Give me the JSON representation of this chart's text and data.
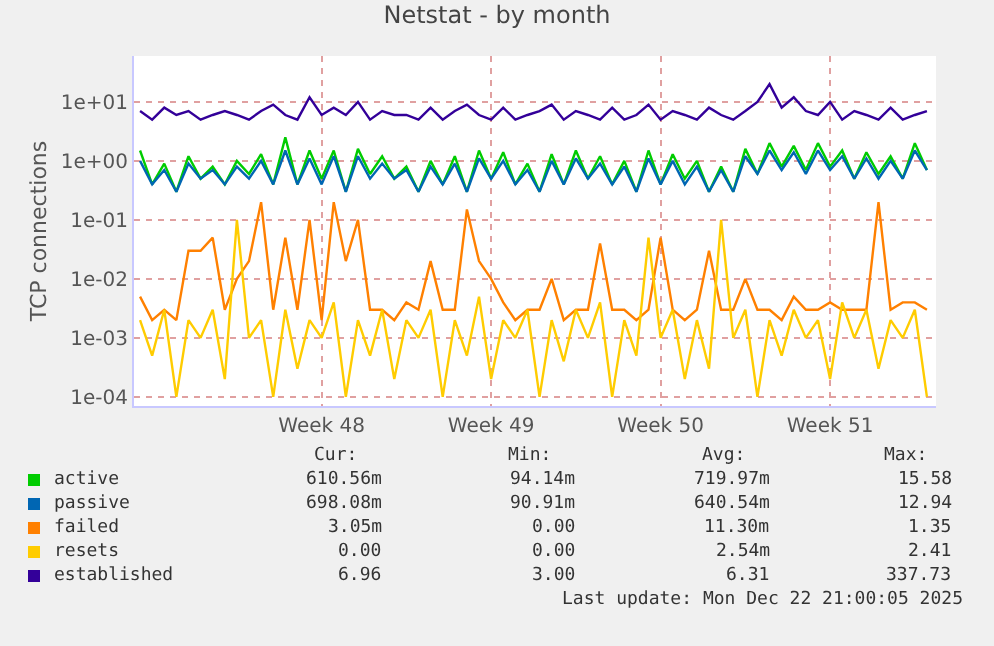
{
  "chart_data": {
    "type": "line",
    "title": "Netstat - by month",
    "ylabel": "TCP connections",
    "log": "y",
    "grid": true,
    "legend": "bottom",
    "ylim": [
      7e-05,
      60
    ],
    "yticks": [
      {
        "value": 0.0001,
        "label": "1e-04"
      },
      {
        "value": 0.001,
        "label": "1e-03"
      },
      {
        "value": 0.01,
        "label": "1e-02"
      },
      {
        "value": 0.1,
        "label": "1e-01"
      },
      {
        "value": 1,
        "label": "1e+00"
      },
      {
        "value": 10,
        "label": "1e+01"
      }
    ],
    "xlim": [
      "2025-11-19T18:00",
      "2025-12-22T21:00"
    ],
    "xticks": [
      {
        "value": "2025-11-27T12:00",
        "label": "Week 48"
      },
      {
        "value": "2025-12-04T12:00",
        "label": "Week 49"
      },
      {
        "value": "2025-12-11T12:00",
        "label": "Week 50"
      },
      {
        "value": "2025-12-18T12:00",
        "label": "Week 51"
      }
    ],
    "x": [
      "2025-11-20T00:00",
      "2025-11-20T12:00",
      "2025-11-21T00:00",
      "2025-11-21T12:00",
      "2025-11-22T00:00",
      "2025-11-22T12:00",
      "2025-11-23T00:00",
      "2025-11-23T12:00",
      "2025-11-24T00:00",
      "2025-11-24T12:00",
      "2025-11-25T00:00",
      "2025-11-25T12:00",
      "2025-11-26T00:00",
      "2025-11-26T12:00",
      "2025-11-27T00:00",
      "2025-11-27T12:00",
      "2025-11-28T00:00",
      "2025-11-28T12:00",
      "2025-11-29T00:00",
      "2025-11-29T12:00",
      "2025-11-30T00:00",
      "2025-11-30T12:00",
      "2025-12-01T00:00",
      "2025-12-01T12:00",
      "2025-12-02T00:00",
      "2025-12-02T12:00",
      "2025-12-03T00:00",
      "2025-12-03T12:00",
      "2025-12-04T00:00",
      "2025-12-04T12:00",
      "2025-12-05T00:00",
      "2025-12-05T12:00",
      "2025-12-06T00:00",
      "2025-12-06T12:00",
      "2025-12-07T00:00",
      "2025-12-07T12:00",
      "2025-12-08T00:00",
      "2025-12-08T12:00",
      "2025-12-09T00:00",
      "2025-12-09T12:00",
      "2025-12-10T00:00",
      "2025-12-10T12:00",
      "2025-12-11T00:00",
      "2025-12-11T12:00",
      "2025-12-12T00:00",
      "2025-12-12T12:00",
      "2025-12-13T00:00",
      "2025-12-13T12:00",
      "2025-12-14T00:00",
      "2025-12-14T12:00",
      "2025-12-15T00:00",
      "2025-12-15T12:00",
      "2025-12-16T00:00",
      "2025-12-16T12:00",
      "2025-12-17T00:00",
      "2025-12-17T12:00",
      "2025-12-18T00:00",
      "2025-12-18T12:00",
      "2025-12-19T00:00",
      "2025-12-19T12:00",
      "2025-12-20T00:00",
      "2025-12-20T12:00",
      "2025-12-21T00:00",
      "2025-12-21T12:00",
      "2025-12-22T00:00",
      "2025-12-22T12:00"
    ],
    "series": [
      {
        "name": "active",
        "color": "#00cc00",
        "values": [
          1.5,
          0.4,
          0.9,
          0.3,
          1.2,
          0.5,
          0.8,
          0.4,
          1,
          0.6,
          1.3,
          0.4,
          2.5,
          0.4,
          1.5,
          0.5,
          1.5,
          0.3,
          1.6,
          0.6,
          1.2,
          0.5,
          0.8,
          0.3,
          1,
          0.4,
          1.2,
          0.3,
          1.5,
          0.5,
          1.4,
          0.4,
          0.9,
          0.3,
          1.3,
          0.4,
          1.5,
          0.5,
          1.2,
          0.4,
          1,
          0.3,
          1.5,
          0.4,
          1.3,
          0.5,
          1,
          0.3,
          0.8,
          0.3,
          1.6,
          0.6,
          2,
          0.8,
          1.8,
          0.7,
          2,
          0.8,
          1.5,
          0.5,
          1.4,
          0.6,
          1.2,
          0.5,
          2,
          0.7
        ]
      },
      {
        "name": "passive",
        "color": "#0066b3",
        "values": [
          1,
          0.4,
          0.7,
          0.3,
          0.9,
          0.5,
          0.7,
          0.4,
          0.8,
          0.5,
          1,
          0.4,
          1.5,
          0.4,
          1.1,
          0.4,
          1.2,
          0.3,
          1.2,
          0.5,
          0.9,
          0.5,
          0.7,
          0.3,
          0.8,
          0.4,
          0.9,
          0.3,
          1.1,
          0.5,
          1,
          0.4,
          0.7,
          0.3,
          1,
          0.4,
          1.1,
          0.5,
          0.9,
          0.4,
          0.8,
          0.3,
          1.1,
          0.4,
          1,
          0.4,
          0.8,
          0.3,
          0.7,
          0.3,
          1.2,
          0.6,
          1.5,
          0.7,
          1.4,
          0.6,
          1.5,
          0.7,
          1.2,
          0.5,
          1.1,
          0.5,
          1,
          0.5,
          1.5,
          0.7
        ]
      },
      {
        "name": "failed",
        "color": "#ff8000",
        "values": [
          0.005,
          0.002,
          0.003,
          0.002,
          0.03,
          0.03,
          0.05,
          0.003,
          0.01,
          0.02,
          0.2,
          0.003,
          0.05,
          0.003,
          0.1,
          0.002,
          0.2,
          0.02,
          0.1,
          0.003,
          0.003,
          0.002,
          0.004,
          0.003,
          0.02,
          0.003,
          0.003,
          0.15,
          0.02,
          0.01,
          0.004,
          0.002,
          0.003,
          0.003,
          0.01,
          0.002,
          0.003,
          0.003,
          0.04,
          0.003,
          0.003,
          0.002,
          0.003,
          0.05,
          0.003,
          0.002,
          0.003,
          0.03,
          0.003,
          0.003,
          0.01,
          0.003,
          0.003,
          0.002,
          0.005,
          0.003,
          0.003,
          0.004,
          0.003,
          0.003,
          0.003,
          0.2,
          0.003,
          0.004,
          0.004,
          0.003
        ]
      },
      {
        "name": "resets",
        "color": "#ffcc00",
        "values": [
          0.002,
          0.0005,
          0.003,
          0.0001,
          0.002,
          0.001,
          0.003,
          0.0002,
          0.1,
          0.001,
          0.002,
          0.0001,
          0.003,
          0.0003,
          0.002,
          0.001,
          0.004,
          0.0001,
          0.002,
          0.0005,
          0.003,
          0.0002,
          0.002,
          0.001,
          0.003,
          0.0001,
          0.002,
          0.0005,
          0.005,
          0.0002,
          0.002,
          0.001,
          0.003,
          0.0001,
          0.002,
          0.0004,
          0.003,
          0.001,
          0.004,
          0.0001,
          0.002,
          0.0005,
          0.05,
          0.001,
          0.003,
          0.0002,
          0.002,
          0.0003,
          0.1,
          0.001,
          0.003,
          0.0001,
          0.002,
          0.0005,
          0.003,
          0.001,
          0.002,
          0.0002,
          0.004,
          0.001,
          0.003,
          0.0003,
          0.002,
          0.001,
          0.003,
          0.0001
        ]
      },
      {
        "name": "established",
        "color": "#330099",
        "values": [
          7,
          5,
          8,
          6,
          7,
          5,
          6,
          7,
          6,
          5,
          7,
          9,
          6,
          5,
          12,
          6,
          8,
          6,
          10,
          5,
          7,
          6,
          6,
          5,
          8,
          5,
          7,
          9,
          6,
          5,
          8,
          5,
          6,
          7,
          9,
          5,
          7,
          6,
          5,
          8,
          5,
          6,
          9,
          5,
          7,
          6,
          5,
          8,
          6,
          5,
          7,
          10,
          20,
          8,
          12,
          7,
          6,
          10,
          5,
          7,
          6,
          5,
          8,
          5,
          6,
          7
        ]
      }
    ],
    "annotations": [
      "Cur:",
      "Min:",
      "Avg:",
      "Max:",
      "610.56m",
      "94.14m",
      "719.97m",
      "15.58",
      "698.08m",
      "90.91m",
      "640.54m",
      "12.94",
      "3.05m",
      "0.00",
      "11.30m",
      "1.35",
      "0.00",
      "0.00",
      "2.54m",
      "2.41",
      "6.96",
      "3.00",
      "6.31",
      "337.73",
      "Last update: Mon Dec 22 21:00:05 2025"
    ]
  }
}
